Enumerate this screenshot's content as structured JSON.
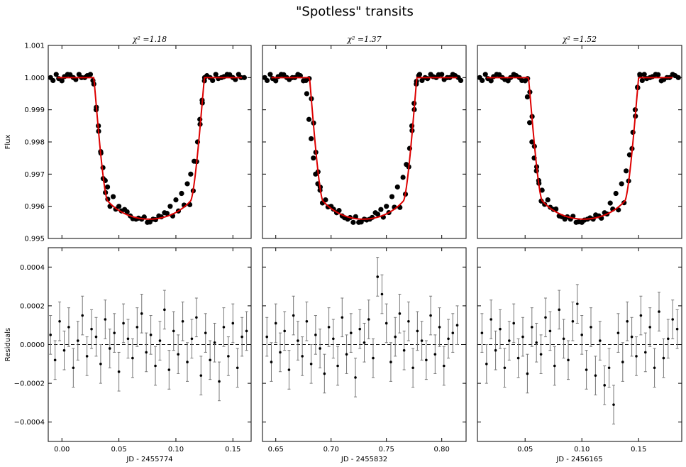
{
  "figure_title": "\"Spotless\" transits",
  "colors": {
    "model": "#dd0000",
    "points": "#000000",
    "errorbars": "#777777",
    "zero_line": "#000000"
  },
  "chart_data": [
    {
      "type": "scatter",
      "panel": "flux-1",
      "title": "χ² =1.18",
      "xlabel": "",
      "ylabel": "Flux",
      "xlim": [
        -0.012,
        0.166
      ],
      "ylim": [
        0.995,
        1.001
      ],
      "yticks": [
        "0.995",
        "0.996",
        "0.997",
        "0.998",
        "0.999",
        "1.000",
        "1.001"
      ],
      "xticks": [],
      "model": {
        "center": 0.0765,
        "depth": 0.0044,
        "t14": 0.097,
        "t12": 0.012,
        "color": "red"
      },
      "x": [
        -0.01,
        -0.005,
        0.0,
        0.005,
        0.01,
        0.015,
        0.02,
        0.025,
        0.028,
        0.03,
        0.032,
        0.034,
        0.036,
        0.038,
        0.04,
        0.045,
        0.05,
        0.055,
        0.06,
        0.065,
        0.07,
        0.075,
        0.08,
        0.085,
        0.09,
        0.095,
        0.1,
        0.105,
        0.11,
        0.113,
        0.116,
        0.119,
        0.121,
        0.123,
        0.125,
        0.13,
        0.135,
        0.14,
        0.145,
        0.15,
        0.155,
        0.16
      ],
      "y": [
        1.0,
        1.0001,
        0.9999,
        1.0001,
        1.0,
        1.0001,
        1.0,
        1.0001,
        0.9998,
        0.999,
        0.9985,
        0.9977,
        0.9972,
        0.9968,
        0.9966,
        0.9963,
        0.996,
        0.9959,
        0.9957,
        0.9956,
        0.9956,
        0.9955,
        0.9956,
        0.9957,
        0.9958,
        0.996,
        0.9962,
        0.9964,
        0.9967,
        0.997,
        0.9974,
        0.998,
        0.9987,
        0.9993,
        0.9999,
        1.0,
        1.0001,
        1.0,
        1.0001,
        1.0,
        1.0001,
        1.0
      ]
    },
    {
      "type": "scatter",
      "panel": "flux-2",
      "title": "χ² =1.37",
      "xlabel": "",
      "ylabel": "",
      "xlim": [
        0.638,
        0.822
      ],
      "ylim": [
        0.995,
        1.001
      ],
      "yticks": [],
      "xticks": [],
      "model": {
        "center": 0.729,
        "depth": 0.0044,
        "t14": 0.097,
        "t12": 0.012,
        "color": "red"
      },
      "x": [
        0.64,
        0.645,
        0.65,
        0.655,
        0.66,
        0.665,
        0.67,
        0.675,
        0.678,
        0.68,
        0.682,
        0.684,
        0.686,
        0.688,
        0.69,
        0.695,
        0.7,
        0.705,
        0.71,
        0.715,
        0.72,
        0.725,
        0.73,
        0.735,
        0.74,
        0.745,
        0.75,
        0.755,
        0.76,
        0.765,
        0.768,
        0.771,
        0.773,
        0.775,
        0.777,
        0.78,
        0.785,
        0.79,
        0.795,
        0.8,
        0.805,
        0.81,
        0.815
      ],
      "y": [
        1.0,
        1.0001,
        0.9999,
        1.0001,
        1.0,
        1.0,
        1.0001,
        0.9999,
        0.9995,
        0.9987,
        0.9981,
        0.9975,
        0.997,
        0.9967,
        0.9965,
        0.9962,
        0.996,
        0.9958,
        0.9957,
        0.9956,
        0.9955,
        0.9955,
        0.9956,
        0.9956,
        0.9958,
        0.9959,
        0.996,
        0.9963,
        0.9966,
        0.9969,
        0.9973,
        0.9978,
        0.9985,
        0.9992,
        0.9998,
        1.0001,
        1.0,
        1.0001,
        1.0,
        1.0001,
        1.0,
        1.0001,
        1.0
      ]
    },
    {
      "type": "scatter",
      "panel": "flux-3",
      "title": "χ² =1.52",
      "xlabel": "",
      "ylabel": "",
      "xlim": [
        0.008,
        0.188
      ],
      "ylim": [
        0.995,
        1.001
      ],
      "yticks": [],
      "xticks": [],
      "model": {
        "center": 0.1015,
        "depth": 0.0044,
        "t14": 0.097,
        "t12": 0.012,
        "color": "red"
      },
      "x": [
        0.01,
        0.015,
        0.02,
        0.025,
        0.03,
        0.035,
        0.04,
        0.045,
        0.05,
        0.052,
        0.054,
        0.056,
        0.058,
        0.06,
        0.062,
        0.065,
        0.07,
        0.075,
        0.08,
        0.085,
        0.09,
        0.095,
        0.1,
        0.105,
        0.11,
        0.115,
        0.12,
        0.125,
        0.13,
        0.135,
        0.139,
        0.142,
        0.145,
        0.147,
        0.149,
        0.151,
        0.155,
        0.16,
        0.165,
        0.17,
        0.175,
        0.18,
        0.185
      ],
      "y": [
        1.0,
        1.0001,
        0.9999,
        1.0001,
        1.0,
        0.9999,
        1.0001,
        1.0,
        0.9999,
        0.9994,
        0.9986,
        0.998,
        0.9975,
        0.9971,
        0.9968,
        0.9965,
        0.9962,
        0.9959,
        0.9957,
        0.9956,
        0.9956,
        0.9955,
        0.9955,
        0.9956,
        0.9956,
        0.9957,
        0.9958,
        0.9961,
        0.9964,
        0.9967,
        0.9971,
        0.9976,
        0.9983,
        0.999,
        0.9997,
        1.0001,
        1.0001,
        1.0,
        1.0001,
        0.9999,
        1.0,
        1.0001,
        1.0
      ]
    },
    {
      "type": "scatter",
      "panel": "resid-1",
      "title": "",
      "xlabel": "JD - 2455774",
      "ylabel": "Residuals",
      "xlim": [
        -0.012,
        0.166
      ],
      "ylim": [
        -0.0005,
        0.0005
      ],
      "xticks": [
        "0.00",
        "0.05",
        "0.10",
        "0.15"
      ],
      "xtick_values": [
        0.0,
        0.05,
        0.1,
        0.15
      ],
      "yticks": [
        "−0.0004",
        "−0.0002",
        "0.0000",
        "0.0002",
        "0.0004"
      ],
      "ytick_values": [
        -0.0004,
        -0.0002,
        0.0,
        0.0002,
        0.0004
      ],
      "error": 0.0001,
      "x": [
        -0.01,
        -0.006,
        -0.002,
        0.002,
        0.006,
        0.01,
        0.014,
        0.018,
        0.022,
        0.026,
        0.03,
        0.034,
        0.038,
        0.042,
        0.046,
        0.05,
        0.054,
        0.058,
        0.062,
        0.066,
        0.07,
        0.074,
        0.078,
        0.082,
        0.086,
        0.09,
        0.094,
        0.098,
        0.102,
        0.106,
        0.11,
        0.114,
        0.118,
        0.122,
        0.126,
        0.13,
        0.134,
        0.138,
        0.142,
        0.146,
        0.15,
        0.154,
        0.158,
        0.162
      ],
      "y": [
        5e-05,
        -8e-05,
        0.00012,
        -3e-05,
        9e-05,
        -0.00012,
        2e-05,
        0.00015,
        -6e-05,
        8e-05,
        4e-05,
        -0.0001,
        0.00013,
        -2e-05,
        6e-05,
        -0.00014,
        0.00011,
        3e-05,
        -7e-05,
        9e-05,
        0.00016,
        -4e-05,
        5e-05,
        -0.00011,
        2e-05,
        0.00018,
        -0.00013,
        7e-05,
        -5e-05,
        0.00012,
        -9e-05,
        3e-05,
        0.00014,
        -0.00016,
        6e-05,
        -8e-05,
        1e-05,
        -0.00019,
        9e-05,
        -6e-05,
        0.00011,
        -0.00012,
        4e-05,
        7e-05
      ]
    },
    {
      "type": "scatter",
      "panel": "resid-2",
      "title": "",
      "xlabel": "JD - 2455832",
      "ylabel": "",
      "xlim": [
        0.638,
        0.822
      ],
      "ylim": [
        -0.0005,
        0.0005
      ],
      "xticks": [
        "0.65",
        "0.70",
        "0.75",
        "0.80"
      ],
      "xtick_values": [
        0.65,
        0.7,
        0.75,
        0.8
      ],
      "yticks": [],
      "error": 0.0001,
      "x": [
        0.642,
        0.646,
        0.65,
        0.654,
        0.658,
        0.662,
        0.666,
        0.67,
        0.674,
        0.678,
        0.682,
        0.686,
        0.69,
        0.694,
        0.698,
        0.702,
        0.706,
        0.71,
        0.714,
        0.718,
        0.722,
        0.726,
        0.73,
        0.734,
        0.738,
        0.742,
        0.746,
        0.75,
        0.754,
        0.758,
        0.762,
        0.766,
        0.77,
        0.774,
        0.778,
        0.782,
        0.786,
        0.79,
        0.794,
        0.798,
        0.802,
        0.806,
        0.81,
        0.814
      ],
      "y": [
        4e-05,
        -9e-05,
        0.00011,
        -4e-05,
        7e-05,
        -0.00013,
        0.00015,
        2e-05,
        -6e-05,
        0.00012,
        -0.0001,
        5e-05,
        -2e-05,
        -0.00015,
        9e-05,
        3e-05,
        -0.00011,
        0.00014,
        -5e-05,
        6e-05,
        -0.00017,
        8e-05,
        1e-05,
        0.00013,
        -7e-05,
        0.00035,
        0.00026,
        0.00011,
        -9e-05,
        4e-05,
        0.00016,
        -3e-05,
        0.00012,
        -0.00012,
        7e-05,
        2e-05,
        -8e-05,
        0.00015,
        -5e-05,
        9e-05,
        -0.00011,
        3e-05,
        6e-05,
        0.0001
      ]
    },
    {
      "type": "scatter",
      "panel": "resid-3",
      "title": "",
      "xlabel": "JD - 2456165",
      "ylabel": "",
      "xlim": [
        0.008,
        0.188
      ],
      "ylim": [
        -0.0005,
        0.0005
      ],
      "xticks": [
        "0.05",
        "0.10",
        "0.15"
      ],
      "xtick_values": [
        0.05,
        0.1,
        0.15
      ],
      "yticks": [],
      "error": 0.0001,
      "x": [
        0.012,
        0.016,
        0.02,
        0.024,
        0.028,
        0.032,
        0.036,
        0.04,
        0.044,
        0.048,
        0.052,
        0.056,
        0.06,
        0.064,
        0.068,
        0.072,
        0.076,
        0.08,
        0.084,
        0.088,
        0.092,
        0.096,
        0.1,
        0.104,
        0.108,
        0.112,
        0.116,
        0.12,
        0.124,
        0.128,
        0.132,
        0.136,
        0.14,
        0.144,
        0.148,
        0.152,
        0.156,
        0.16,
        0.164,
        0.168,
        0.172,
        0.176,
        0.18,
        0.184
      ],
      "y": [
        6e-05,
        -0.0001,
        0.00013,
        -3e-05,
        8e-05,
        -0.00012,
        2e-05,
        0.00011,
        -7e-05,
        4e-05,
        -0.00015,
        9e-05,
        1e-05,
        -5e-05,
        0.00014,
        7e-05,
        -0.00011,
        0.00018,
        3e-05,
        -8e-05,
        0.00012,
        0.00021,
        5e-05,
        -0.00013,
        9e-05,
        -0.00016,
        2e-05,
        -0.00021,
        -0.00012,
        -0.00031,
        6e-05,
        -9e-05,
        0.00012,
        4e-05,
        -6e-05,
        0.00015,
        -4e-05,
        9e-05,
        -0.00012,
        0.00017,
        -7e-05,
        3e-05,
        0.00013,
        8e-05
      ]
    }
  ]
}
